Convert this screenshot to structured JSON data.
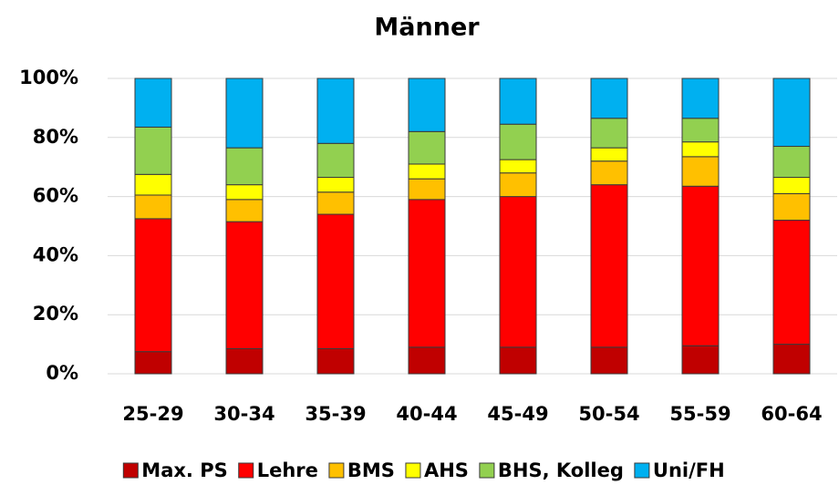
{
  "chart_data": {
    "type": "stacked-bar",
    "title": "Männer",
    "categories": [
      "25-29",
      "30-34",
      "35-39",
      "40-44",
      "45-49",
      "50-54",
      "55-59",
      "60-64"
    ],
    "series": [
      {
        "name": "Max. PS",
        "color": "#c00000",
        "values": [
          7.5,
          8.5,
          8.5,
          9,
          9,
          9,
          9.5,
          10
        ]
      },
      {
        "name": "Lehre",
        "color": "#ff0000",
        "values": [
          45,
          43,
          45.5,
          50,
          51,
          55,
          54,
          42
        ]
      },
      {
        "name": "BMS",
        "color": "#ffc000",
        "values": [
          8,
          7.5,
          7.5,
          7,
          8,
          8,
          10,
          9
        ]
      },
      {
        "name": "AHS",
        "color": "#ffff00",
        "values": [
          7,
          5,
          5,
          5,
          4.5,
          4.5,
          5,
          5.5
        ]
      },
      {
        "name": "BHS, Kolleg",
        "color": "#92d050",
        "values": [
          16,
          12.5,
          11.5,
          11,
          12,
          10,
          8,
          10.5
        ]
      },
      {
        "name": "Uni/FH",
        "color": "#00b0f0",
        "values": [
          16.5,
          23.5,
          22,
          18,
          15.5,
          13.5,
          13.5,
          23
        ]
      }
    ],
    "ylim": [
      0,
      100
    ],
    "yticks": [
      {
        "value": 0,
        "label": "0%"
      },
      {
        "value": 20,
        "label": "20%"
      },
      {
        "value": 40,
        "label": "40%"
      },
      {
        "value": 60,
        "label": "60%"
      },
      {
        "value": 80,
        "label": "80%"
      },
      {
        "value": 100,
        "label": "100%"
      }
    ],
    "grid": true,
    "legend": "bottom"
  }
}
